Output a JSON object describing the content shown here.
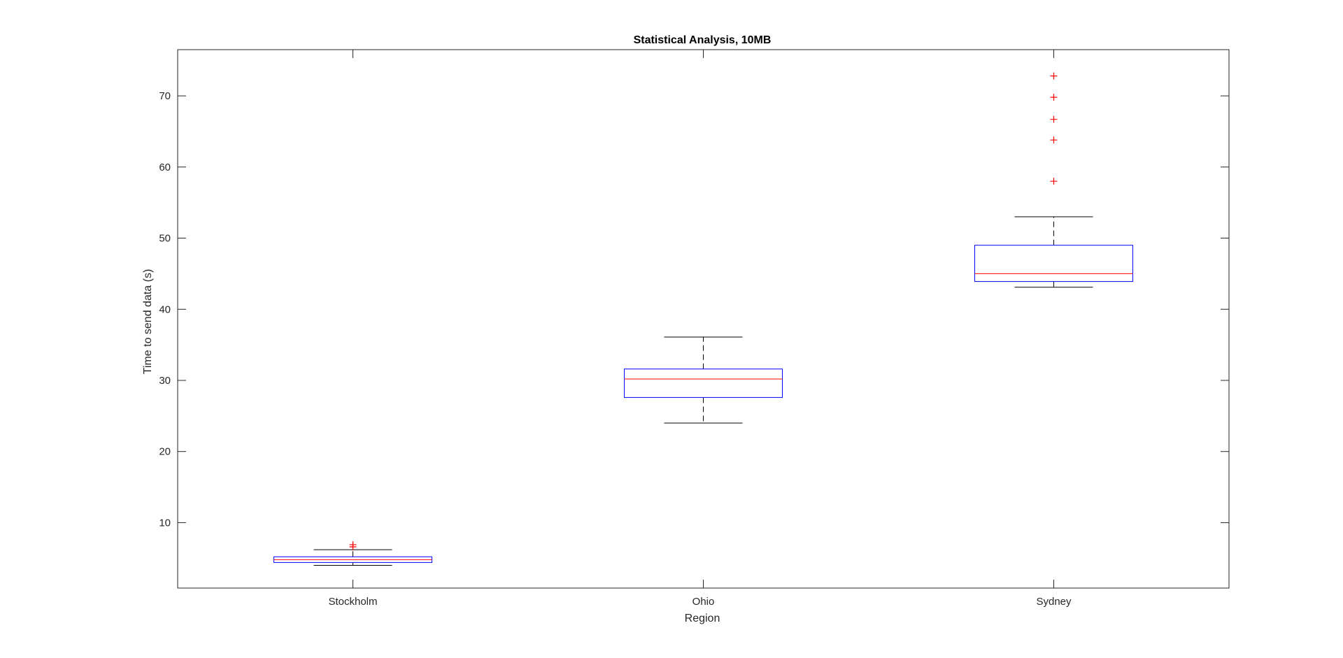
{
  "chart_data": {
    "type": "box",
    "title": "Statistical Analysis, 10MB",
    "xlabel": "Region",
    "ylabel": "Time to send data (s)",
    "categories": [
      "Stockholm",
      "Ohio",
      "Sydney"
    ],
    "ylim": [
      0.8,
      76.5
    ],
    "yticks": [
      10,
      20,
      30,
      40,
      50,
      60,
      70
    ],
    "grid": false,
    "boxes": [
      {
        "category": "Stockholm",
        "whisker_low": 4.0,
        "q1": 4.4,
        "median": 4.8,
        "q3": 5.2,
        "whisker_high": 6.2,
        "outliers": [
          6.6,
          6.9
        ]
      },
      {
        "category": "Ohio",
        "whisker_low": 24.0,
        "q1": 27.6,
        "median": 30.2,
        "q3": 31.6,
        "whisker_high": 36.1,
        "outliers": []
      },
      {
        "category": "Sydney",
        "whisker_low": 43.1,
        "q1": 43.9,
        "median": 45.0,
        "q3": 49.0,
        "whisker_high": 53.0,
        "outliers": [
          58.0,
          63.8,
          66.7,
          69.8,
          72.8
        ]
      }
    ],
    "colors": {
      "box": "#0000ff",
      "median": "#ff0000",
      "outlier": "#ff0000",
      "whisker": "#000000",
      "axis": "#262626"
    }
  }
}
